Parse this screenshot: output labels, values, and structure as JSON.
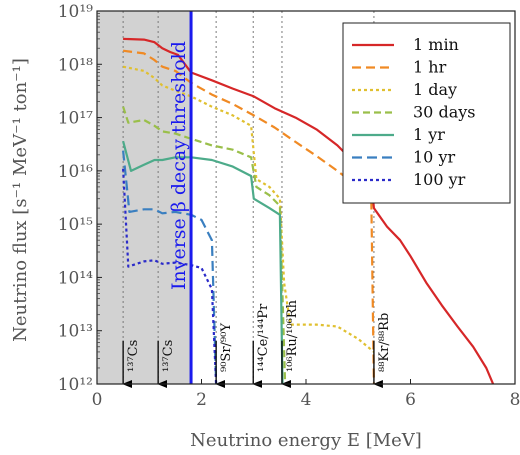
{
  "chart_data": {
    "type": "line",
    "xlabel": "Neutrino energy E [MeV]",
    "ylabel": "Neutrino flux [s⁻¹ MeV⁻¹ ton⁻¹]",
    "xlim": [
      0,
      8
    ],
    "ylim": [
      1000000000000.0,
      1e+19
    ],
    "yscale": "log",
    "x_ticks": [
      0,
      2,
      4,
      6,
      8
    ],
    "x_tick_labels": [
      "0",
      "2",
      "4",
      "6",
      "8"
    ],
    "y_tick_exponents": [
      12,
      13,
      14,
      15,
      16,
      17,
      18,
      19
    ],
    "y_tick_labels": [
      "10¹²",
      "10¹³",
      "10¹⁴",
      "10¹⁵",
      "10¹⁶",
      "10¹⁷",
      "10¹⁸",
      "10¹⁹"
    ],
    "legend_position": "top-right",
    "shaded_region": [
      0,
      1.8
    ],
    "threshold": {
      "x": 1.8,
      "label": "Inverse β decay threshold",
      "color": "#1a1aee"
    },
    "isotope_markers": [
      {
        "x": 0.5,
        "label": "¹³⁷Cs"
      },
      {
        "x": 1.17,
        "label": "¹³⁷Cs"
      },
      {
        "x": 2.28,
        "label": "⁹⁰Sr/⁹⁰Y"
      },
      {
        "x": 2.99,
        "label": "¹⁴⁴Ce/¹⁴⁴Pr"
      },
      {
        "x": 3.54,
        "label": "¹⁰⁶Ru/¹⁰⁶Rh"
      },
      {
        "x": 5.3,
        "label": "⁸⁸Kr/⁸⁸Rb"
      }
    ],
    "series": [
      {
        "name": "1 min",
        "color": "#d62728",
        "dash": "",
        "points": [
          [
            0.5,
            3e+18
          ],
          [
            0.9,
            2.9e+18
          ],
          [
            1.1,
            2.6e+18
          ],
          [
            1.25,
            2e+18
          ],
          [
            1.4,
            1.7e+18
          ],
          [
            1.55,
            1.5e+18
          ],
          [
            1.8,
            7e+17
          ],
          [
            2.2,
            5e+17
          ],
          [
            2.6,
            3.5e+17
          ],
          [
            3.0,
            2.5e+17
          ],
          [
            3.4,
            1.5e+17
          ],
          [
            3.8,
            1e+17
          ],
          [
            4.2,
            6e+16
          ],
          [
            4.6,
            3e+16
          ],
          [
            5.0,
            1.2e+16
          ],
          [
            5.25,
            7000000000000000.0
          ],
          [
            5.3,
            2000000000000000.0
          ],
          [
            5.55,
            900000000000000.0
          ],
          [
            5.8,
            500000000000000.0
          ],
          [
            6.0,
            250000000000000.0
          ],
          [
            6.3,
            80000000000000.0
          ],
          [
            6.6,
            30000000000000.0
          ],
          [
            6.9,
            12000000000000.0
          ],
          [
            7.2,
            5000000000000.0
          ],
          [
            7.45,
            2000000000000.0
          ],
          [
            7.58,
            1000000000000.0
          ]
        ]
      },
      {
        "name": "1 hr",
        "color": "#f08a24",
        "dash": "9,5",
        "points": [
          [
            0.5,
            1.8e+18
          ],
          [
            0.9,
            1.6e+18
          ],
          [
            1.1,
            1.2e+18
          ],
          [
            1.25,
            9e+17
          ],
          [
            1.5,
            7.5e+17
          ],
          [
            1.8,
            4.5e+17
          ],
          [
            2.2,
            2.7e+17
          ],
          [
            2.6,
            1.8e+17
          ],
          [
            3.0,
            1.1e+17
          ],
          [
            3.4,
            6.5e+16
          ],
          [
            3.8,
            3.5e+16
          ],
          [
            4.2,
            1.9e+16
          ],
          [
            4.6,
            1e+16
          ],
          [
            5.0,
            5000000000000000.0
          ],
          [
            5.25,
            3000000000000000.0
          ],
          [
            5.3,
            1000000000000.0
          ]
        ]
      },
      {
        "name": "1 day",
        "color": "#e0c030",
        "dash": "3,3",
        "points": [
          [
            0.5,
            9e+17
          ],
          [
            0.9,
            7.5e+17
          ],
          [
            1.1,
            5.5e+17
          ],
          [
            1.25,
            4e+17
          ],
          [
            1.5,
            3.2e+17
          ],
          [
            1.8,
            2.5e+17
          ],
          [
            2.2,
            1.6e+17
          ],
          [
            2.6,
            1.1e+17
          ],
          [
            2.95,
            7e+16
          ],
          [
            3.05,
            7000000000000000.0
          ],
          [
            3.3,
            5000000000000000.0
          ],
          [
            3.5,
            3000000000000000.0
          ],
          [
            3.58,
            80000000000000.0
          ],
          [
            3.7,
            13000000000000.0
          ],
          [
            4.2,
            13000000000000.0
          ],
          [
            4.6,
            12000000000000.0
          ],
          [
            5.0,
            7000000000000.0
          ],
          [
            5.3,
            4000000000000.0
          ]
        ]
      },
      {
        "name": "30 days",
        "color": "#9abf4a",
        "dash": "7,4",
        "points": [
          [
            0.5,
            1.6e+17
          ],
          [
            0.6,
            8e+16
          ],
          [
            0.9,
            9e+16
          ],
          [
            1.1,
            7e+16
          ],
          [
            1.25,
            5.5e+16
          ],
          [
            1.5,
            5e+16
          ],
          [
            1.8,
            4e+16
          ],
          [
            2.2,
            3e+16
          ],
          [
            2.6,
            2.5e+16
          ],
          [
            2.95,
            1.8e+16
          ],
          [
            3.05,
            5000000000000000.0
          ],
          [
            3.3,
            3500000000000000.0
          ],
          [
            3.5,
            2200000000000000.0
          ],
          [
            3.6,
            1000000000000.0
          ]
        ]
      },
      {
        "name": "1 yr",
        "color": "#4dab8a",
        "dash": "",
        "points": [
          [
            0.5,
            3.6e+16
          ],
          [
            0.65,
            1e+16
          ],
          [
            0.9,
            1.3e+16
          ],
          [
            1.1,
            1.6e+16
          ],
          [
            1.25,
            1.6e+16
          ],
          [
            1.5,
            1.8e+16
          ],
          [
            1.8,
            1.8e+16
          ],
          [
            2.2,
            1.6e+16
          ],
          [
            2.6,
            1.2e+16
          ],
          [
            2.95,
            8000000000000000.0
          ],
          [
            3.0,
            3000000000000000.0
          ],
          [
            3.3,
            2000000000000000.0
          ],
          [
            3.5,
            1500000000000000.0
          ],
          [
            3.55,
            1000000000000.0
          ]
        ]
      },
      {
        "name": "10 yr",
        "color": "#3a7fc0",
        "dash": "10,5",
        "points": [
          [
            0.5,
            2.4e+16
          ],
          [
            0.62,
            1700000000000000.0
          ],
          [
            0.9,
            1900000000000000.0
          ],
          [
            1.1,
            1900000000000000.0
          ],
          [
            1.25,
            1600000000000000.0
          ],
          [
            1.5,
            1700000000000000.0
          ],
          [
            1.8,
            1500000000000000.0
          ],
          [
            2.0,
            1200000000000000.0
          ],
          [
            2.2,
            500000000000000.0
          ],
          [
            2.28,
            1000000000000.0
          ]
        ]
      },
      {
        "name": "100 yr",
        "color": "#2b2bc9",
        "dash": "3,3",
        "points": [
          [
            0.5,
            1.1e+16
          ],
          [
            0.6,
            160000000000000.0
          ],
          [
            0.9,
            200000000000000.0
          ],
          [
            1.1,
            210000000000000.0
          ],
          [
            1.25,
            180000000000000.0
          ],
          [
            1.5,
            190000000000000.0
          ],
          [
            1.8,
            170000000000000.0
          ],
          [
            2.0,
            150000000000000.0
          ],
          [
            2.2,
            60000000000000.0
          ],
          [
            2.28,
            1000000000000.0
          ]
        ]
      }
    ]
  }
}
